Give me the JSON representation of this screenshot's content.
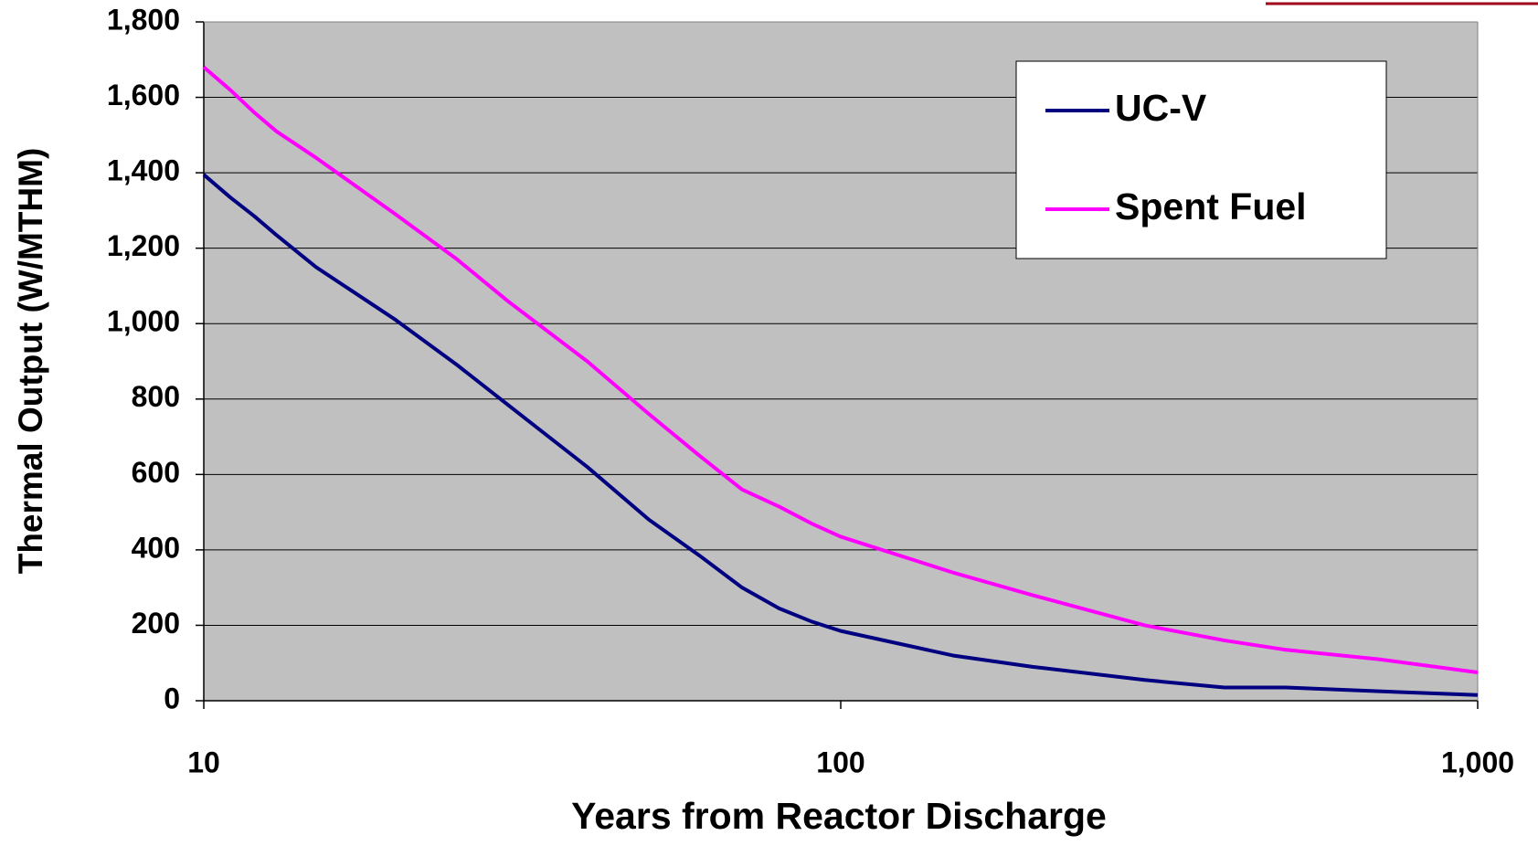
{
  "chart_data": {
    "type": "line",
    "xlabel": "Years from Reactor Discharge",
    "ylabel": "Thermal Output (W/MTHM)",
    "x": [
      10,
      11,
      12,
      13,
      15,
      20,
      25,
      30,
      40,
      50,
      60,
      70,
      80,
      90,
      100,
      150,
      200,
      300,
      400,
      500,
      700,
      1000
    ],
    "series": [
      {
        "name": "UC-V",
        "color": "#000080",
        "values": [
          1395,
          1335,
          1285,
          1235,
          1150,
          1010,
          890,
          785,
          620,
          480,
          385,
          300,
          245,
          210,
          185,
          120,
          90,
          55,
          35,
          35,
          25,
          15
        ]
      },
      {
        "name": "Spent Fuel",
        "color": "#ff00ff",
        "values": [
          1680,
          1620,
          1560,
          1510,
          1440,
          1290,
          1170,
          1060,
          900,
          760,
          650,
          560,
          515,
          470,
          435,
          340,
          280,
          200,
          160,
          135,
          110,
          75
        ]
      }
    ],
    "xlim": [
      10,
      1000
    ],
    "xscale": "log",
    "xticks": [
      10,
      100,
      {
        "value": 1000,
        "label": "1,000"
      }
    ],
    "ylim": [
      0,
      1800
    ],
    "yticks": [
      0,
      200,
      400,
      600,
      800,
      {
        "value": 1000,
        "label": "1,000"
      },
      {
        "value": 1200,
        "label": "1,200"
      },
      {
        "value": 1400,
        "label": "1,400"
      },
      {
        "value": 1600,
        "label": "1,600"
      },
      {
        "value": 1800,
        "label": "1,800"
      }
    ],
    "grid": true,
    "legend": "upper right"
  }
}
